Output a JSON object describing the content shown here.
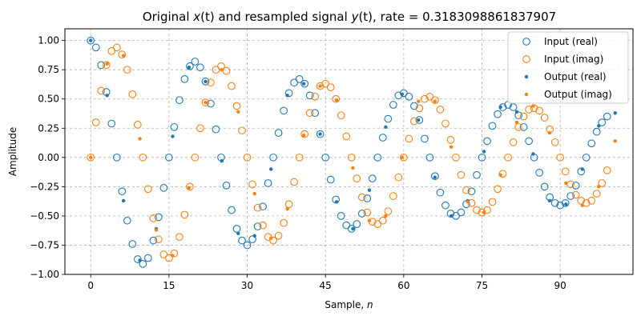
{
  "colors": {
    "real": "#1f77b4",
    "imag": "#ff7f0e",
    "grid": "#b0b0b0"
  },
  "chart_data": {
    "type": "scatter",
    "title": {
      "prefix": "Original ",
      "x_var": "x",
      "mid": " and resampled signal ",
      "y_var": "y",
      "arg": "(t)",
      "suffix": ", rate = 0.3183098861837907"
    },
    "xlabel": {
      "text": "Sample, ",
      "var": "n"
    },
    "ylabel": "Amplitude",
    "xlim": [
      -4.95,
      103.95
    ],
    "ylim": [
      -1.0,
      1.1
    ],
    "xticks": [
      0,
      15,
      30,
      45,
      60,
      75,
      90
    ],
    "yticks": [
      -1.0,
      -0.75,
      -0.5,
      -0.25,
      0.0,
      0.25,
      0.5,
      0.75,
      1.0
    ],
    "ytick_labels": [
      "−1.00",
      "−0.75",
      "−0.50",
      "−0.25",
      "0.00",
      "0.25",
      "0.50",
      "0.75",
      "1.00"
    ],
    "grid": true,
    "legend_position": "top-right",
    "series": [
      {
        "name": "Input (real)",
        "marker": "open-circle",
        "color_key": "real",
        "x_start": 0,
        "values": [
          1.0,
          0.94,
          0.79,
          0.56,
          0.29,
          0.0,
          -0.29,
          -0.54,
          -0.74,
          -0.87,
          -0.91,
          -0.86,
          -0.71,
          -0.51,
          -0.26,
          0.0,
          0.26,
          0.49,
          0.67,
          0.78,
          0.82,
          0.77,
          0.65,
          0.46,
          0.24,
          0.0,
          -0.24,
          -0.45,
          -0.61,
          -0.71,
          -0.75,
          -0.7,
          -0.59,
          -0.42,
          -0.22,
          0.0,
          0.21,
          0.4,
          0.55,
          0.64,
          0.67,
          0.63,
          0.53,
          0.38,
          0.2,
          0.0,
          -0.19,
          -0.36,
          -0.5,
          -0.58,
          -0.61,
          -0.57,
          -0.48,
          -0.35,
          -0.18,
          0.0,
          0.17,
          0.33,
          0.45,
          0.53,
          0.55,
          0.52,
          0.44,
          0.32,
          0.16,
          0.0,
          -0.16,
          -0.3,
          -0.41,
          -0.48,
          -0.5,
          -0.47,
          -0.4,
          -0.29,
          -0.15,
          0.0,
          0.14,
          0.27,
          0.37,
          0.43,
          0.45,
          0.43,
          0.36,
          0.26,
          0.14,
          0.0,
          -0.13,
          -0.25,
          -0.34,
          -0.39,
          -0.41,
          -0.39,
          -0.33,
          -0.24,
          -0.12,
          0.0,
          0.12,
          0.22,
          0.3,
          0.35
        ]
      },
      {
        "name": "Input (imag)",
        "marker": "open-circle",
        "color_key": "imag",
        "x_start": 0,
        "values": [
          0.0,
          0.3,
          0.57,
          0.79,
          0.91,
          0.94,
          0.88,
          0.75,
          0.54,
          0.28,
          0.0,
          -0.27,
          -0.52,
          -0.7,
          -0.83,
          -0.86,
          -0.82,
          -0.68,
          -0.49,
          -0.25,
          0.0,
          0.25,
          0.47,
          0.64,
          0.75,
          0.78,
          0.74,
          0.61,
          0.44,
          0.23,
          0.0,
          -0.23,
          -0.43,
          -0.58,
          -0.68,
          -0.71,
          -0.67,
          -0.56,
          -0.4,
          -0.21,
          0.0,
          0.2,
          0.38,
          0.52,
          0.61,
          0.63,
          0.6,
          0.5,
          0.36,
          0.18,
          0.0,
          -0.18,
          -0.34,
          -0.47,
          -0.55,
          -0.57,
          -0.54,
          -0.46,
          -0.33,
          -0.17,
          0.0,
          0.16,
          0.31,
          0.42,
          0.5,
          0.52,
          0.49,
          0.41,
          0.29,
          0.15,
          0.0,
          -0.15,
          -0.28,
          -0.39,
          -0.45,
          -0.47,
          -0.45,
          -0.38,
          -0.27,
          -0.14,
          0.0,
          0.13,
          0.26,
          0.35,
          0.41,
          0.42,
          0.4,
          0.34,
          0.24,
          0.13,
          0.0,
          -0.12,
          -0.23,
          -0.32,
          -0.37,
          -0.39,
          -0.37,
          -0.31,
          -0.22,
          -0.11
        ]
      },
      {
        "name": "Output (real)",
        "marker": "dot",
        "color_key": "real",
        "x_start": 0,
        "x_step": 3.1416,
        "values": [
          1.0,
          0.53,
          -0.37,
          -0.88,
          -0.61,
          0.18,
          0.77,
          0.65,
          -0.03,
          -0.65,
          -0.67,
          -0.1,
          0.53,
          0.63,
          0.2,
          -0.38,
          -0.61,
          -0.28,
          0.26,
          0.54,
          0.32,
          -0.17,
          -0.5,
          -0.37,
          0.05,
          0.43,
          0.39,
          0.03,
          -0.37,
          -0.4,
          -0.1,
          0.27,
          0.38
        ]
      },
      {
        "name": "Output (imag)",
        "marker": "dot",
        "color_key": "imag",
        "x_start": 0,
        "x_step": 3.1416,
        "values": [
          0.0,
          0.8,
          0.87,
          0.16,
          -0.62,
          -0.84,
          -0.26,
          0.47,
          0.75,
          0.39,
          -0.31,
          -0.69,
          -0.44,
          0.19,
          0.61,
          0.49,
          -0.09,
          -0.54,
          -0.5,
          0.0,
          0.48,
          0.48,
          0.09,
          -0.38,
          -0.47,
          -0.15,
          0.3,
          0.44,
          0.21,
          -0.22,
          -0.41,
          -0.25,
          0.14
        ]
      }
    ]
  }
}
